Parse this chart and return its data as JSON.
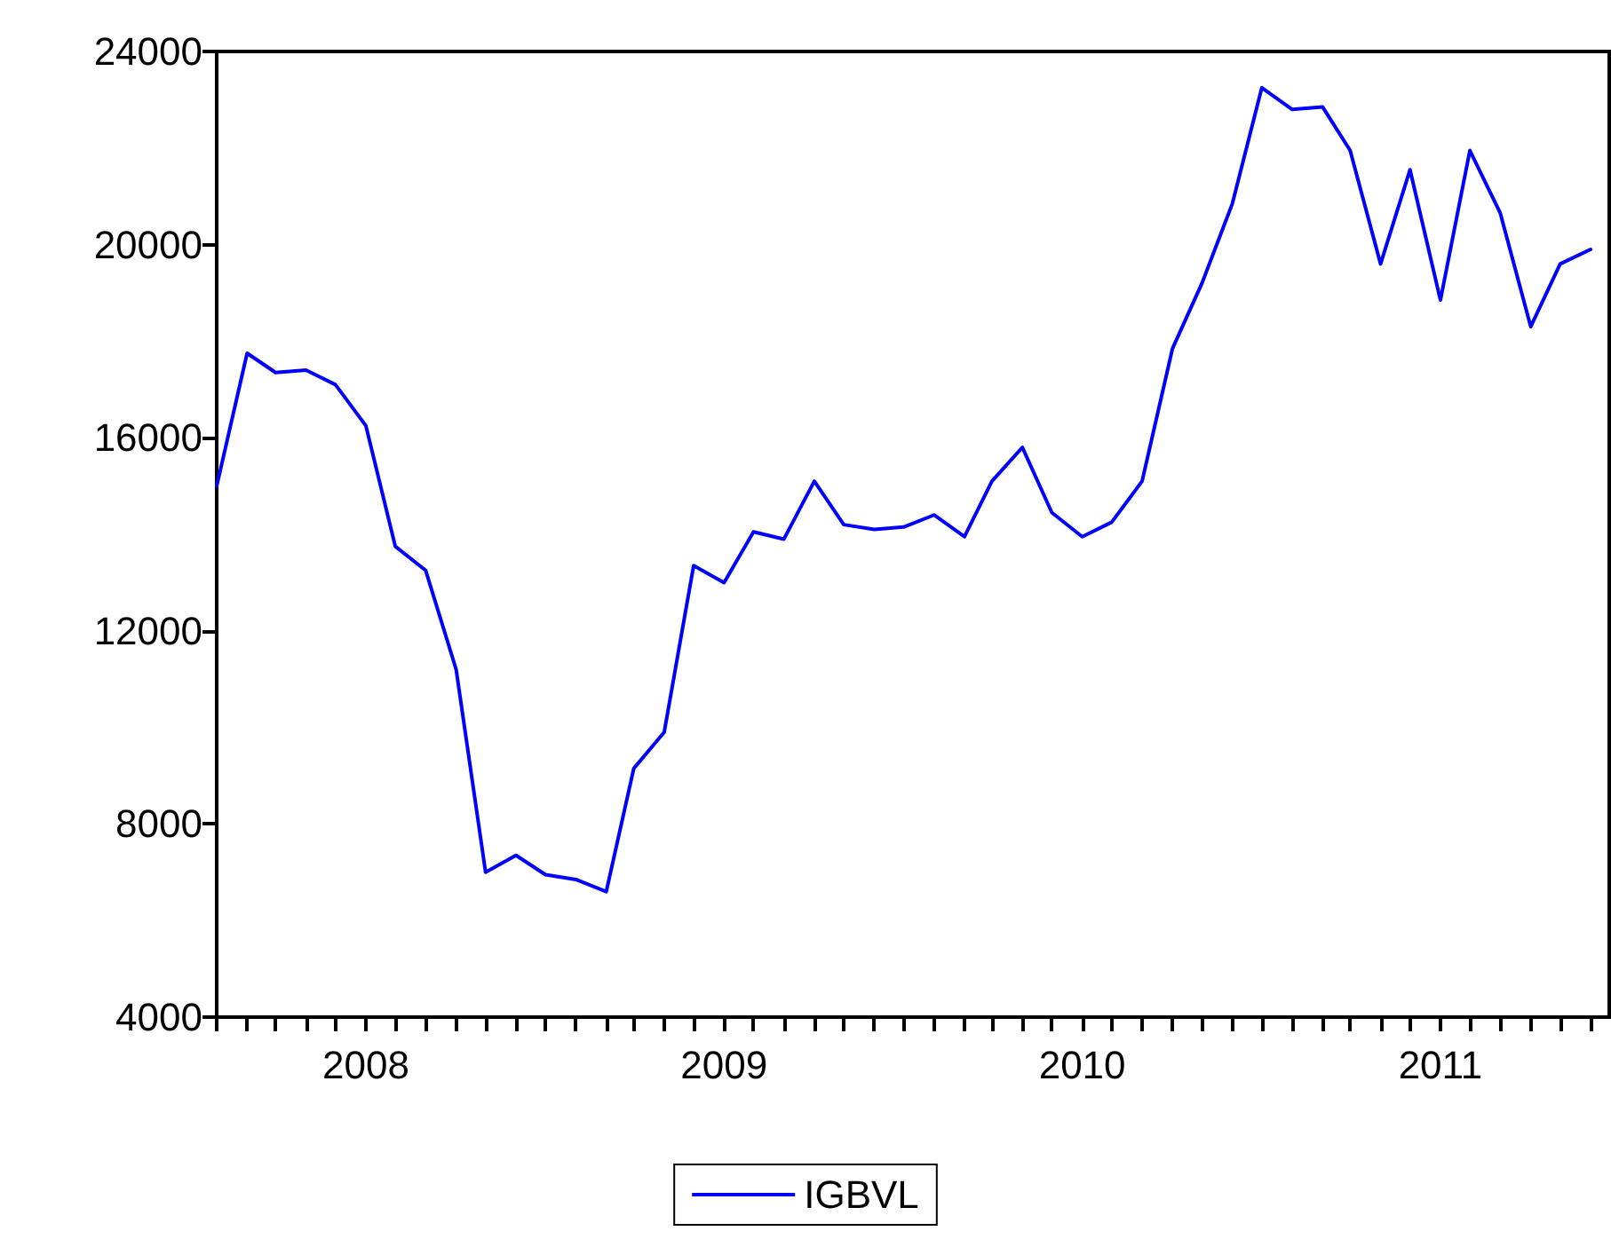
{
  "chart_data": {
    "type": "line",
    "x": [
      "2008-01",
      "2008-02",
      "2008-03",
      "2008-04",
      "2008-05",
      "2008-06",
      "2008-07",
      "2008-08",
      "2008-09",
      "2008-10",
      "2008-11",
      "2008-12",
      "2009-01",
      "2009-02",
      "2009-03",
      "2009-04",
      "2009-05",
      "2009-06",
      "2009-07",
      "2009-08",
      "2009-09",
      "2009-10",
      "2009-11",
      "2009-12",
      "2010-01",
      "2010-02",
      "2010-03",
      "2010-04",
      "2010-05",
      "2010-06",
      "2010-07",
      "2010-08",
      "2010-09",
      "2010-10",
      "2010-11",
      "2010-12",
      "2011-01",
      "2011-02",
      "2011-03",
      "2011-04",
      "2011-05",
      "2011-06",
      "2011-07",
      "2011-08",
      "2011-09",
      "2011-10",
      "2011-11"
    ],
    "series": [
      {
        "name": "IGBVL",
        "color": "#0000ff",
        "values": [
          15000,
          17750,
          17350,
          17400,
          17100,
          16250,
          13750,
          13250,
          11200,
          7000,
          7350,
          6950,
          6850,
          6600,
          9150,
          9900,
          13350,
          13000,
          14050,
          13900,
          15100,
          14200,
          14100,
          14150,
          14400,
          13950,
          15100,
          15800,
          14450,
          13950,
          14250,
          15100,
          17850,
          19200,
          20850,
          23250,
          22800,
          22850,
          21950,
          19600,
          21550,
          18850,
          21950,
          20650,
          18300,
          19600,
          19900
        ]
      }
    ],
    "xlim": [
      "2008-01",
      "2011-11-20"
    ],
    "xticks": [
      {
        "value": "2008-01",
        "label": null
      },
      {
        "value": "2008-02",
        "label": null
      },
      {
        "value": "2008-03",
        "label": null
      },
      {
        "value": "2008-04",
        "label": null
      },
      {
        "value": "2008-05",
        "label": null
      },
      {
        "value": "2008-06",
        "label": "2008"
      },
      {
        "value": "2008-07",
        "label": null
      },
      {
        "value": "2008-08",
        "label": null
      },
      {
        "value": "2008-09",
        "label": null
      },
      {
        "value": "2008-10",
        "label": null
      },
      {
        "value": "2008-11",
        "label": null
      },
      {
        "value": "2008-12",
        "label": null
      },
      {
        "value": "2009-01",
        "label": null
      },
      {
        "value": "2009-02",
        "label": null
      },
      {
        "value": "2009-03",
        "label": null
      },
      {
        "value": "2009-04",
        "label": null
      },
      {
        "value": "2009-05",
        "label": null
      },
      {
        "value": "2009-06",
        "label": "2009"
      },
      {
        "value": "2009-07",
        "label": null
      },
      {
        "value": "2009-08",
        "label": null
      },
      {
        "value": "2009-09",
        "label": null
      },
      {
        "value": "2009-10",
        "label": null
      },
      {
        "value": "2009-11",
        "label": null
      },
      {
        "value": "2009-12",
        "label": null
      },
      {
        "value": "2010-01",
        "label": null
      },
      {
        "value": "2010-02",
        "label": null
      },
      {
        "value": "2010-03",
        "label": null
      },
      {
        "value": "2010-04",
        "label": null
      },
      {
        "value": "2010-05",
        "label": null
      },
      {
        "value": "2010-06",
        "label": "2010"
      },
      {
        "value": "2010-07",
        "label": null
      },
      {
        "value": "2010-08",
        "label": null
      },
      {
        "value": "2010-09",
        "label": null
      },
      {
        "value": "2010-10",
        "label": null
      },
      {
        "value": "2010-11",
        "label": null
      },
      {
        "value": "2010-12",
        "label": null
      },
      {
        "value": "2011-01",
        "label": null
      },
      {
        "value": "2011-02",
        "label": null
      },
      {
        "value": "2011-03",
        "label": null
      },
      {
        "value": "2011-04",
        "label": null
      },
      {
        "value": "2011-05",
        "label": null
      },
      {
        "value": "2011-06",
        "label": "2011"
      },
      {
        "value": "2011-07",
        "label": null
      },
      {
        "value": "2011-08",
        "label": null
      },
      {
        "value": "2011-09",
        "label": null
      },
      {
        "value": "2011-10",
        "label": null
      },
      {
        "value": "2011-11",
        "label": null
      }
    ],
    "ylim": [
      4000,
      24000
    ],
    "yticks": [
      4000,
      8000,
      12000,
      16000,
      20000,
      24000
    ],
    "grid": false,
    "legend": "bottom",
    "marker": "none",
    "line_style": "solid"
  }
}
